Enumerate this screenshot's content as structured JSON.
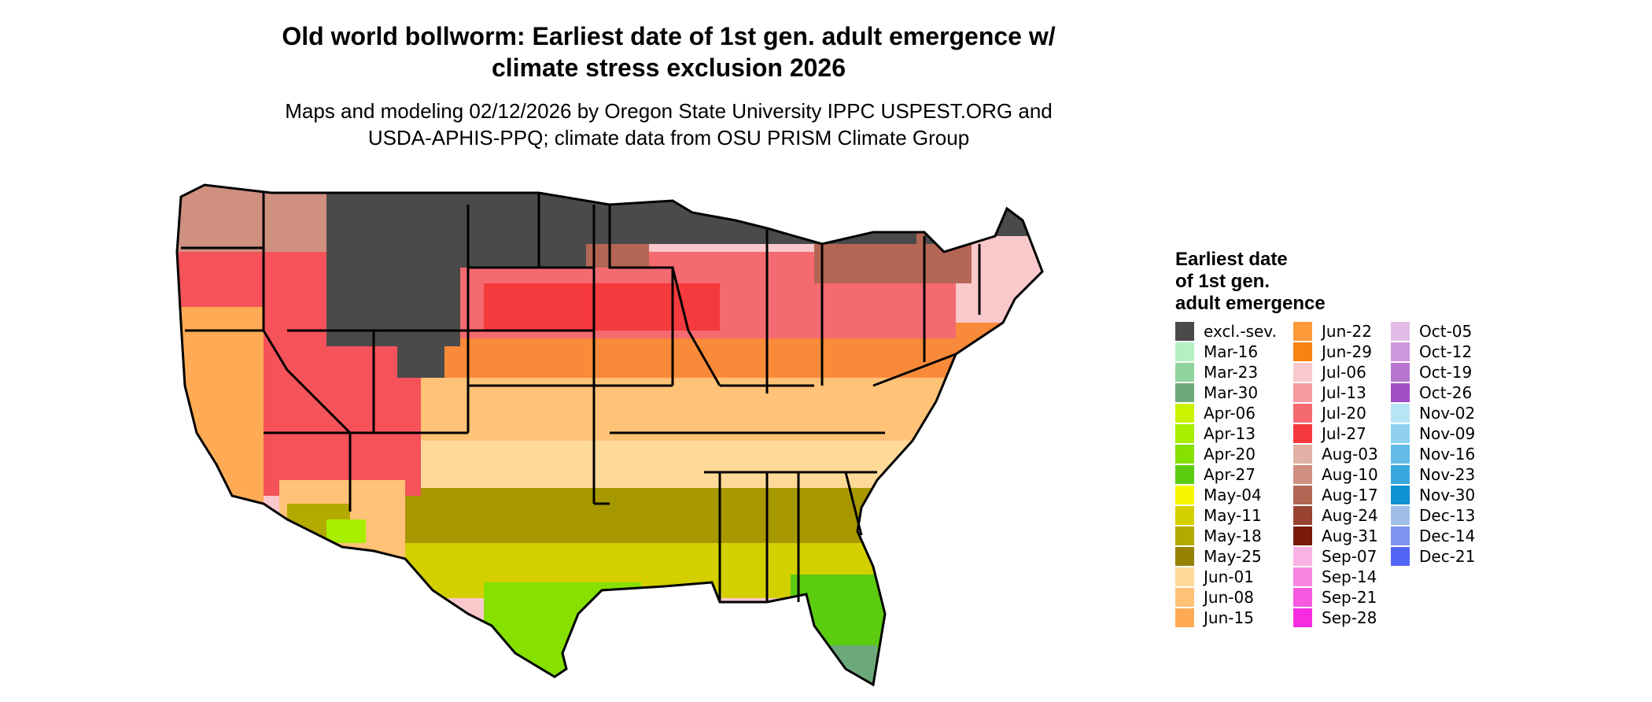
{
  "title_line1": "Old world bollworm: Earliest date of 1st gen. adult emergence w/",
  "title_line2": "climate stress exclusion 2026",
  "subtitle_line1": "Maps and modeling 02/12/2026 by Oregon State University IPPC USPEST.ORG and",
  "subtitle_line2": "USDA-APHIS-PPQ; climate data from OSU PRISM Climate Group",
  "legend": {
    "title_line1": "Earliest date",
    "title_line2": "of 1st gen.",
    "title_line3": "adult emergence",
    "columns": [
      [
        {
          "label": "excl.-sev.",
          "color": "#4a4a4a"
        },
        {
          "label": "Mar-16",
          "color": "#b3f2c0"
        },
        {
          "label": "Mar-23",
          "color": "#8fd39d"
        },
        {
          "label": "Mar-30",
          "color": "#6ca97a"
        },
        {
          "label": "Apr-06",
          "color": "#ccf200"
        },
        {
          "label": "Apr-13",
          "color": "#a8ee00"
        },
        {
          "label": "Apr-20",
          "color": "#86e000"
        },
        {
          "label": "Apr-27",
          "color": "#5ccc10"
        },
        {
          "label": "May-04",
          "color": "#f7f700"
        },
        {
          "label": "May-11",
          "color": "#d4d000"
        },
        {
          "label": "May-18",
          "color": "#b3aa00"
        },
        {
          "label": "May-25",
          "color": "#958200"
        },
        {
          "label": "Jun-01",
          "color": "#ffd998"
        },
        {
          "label": "Jun-08",
          "color": "#ffc277"
        },
        {
          "label": "Jun-15",
          "color": "#ffab55"
        }
      ],
      [
        {
          "label": "Jun-22",
          "color": "#ff9a3a"
        },
        {
          "label": "Jun-29",
          "color": "#f98310"
        },
        {
          "label": "Jul-06",
          "color": "#f7c9cc"
        },
        {
          "label": "Jul-13",
          "color": "#f59a9f"
        },
        {
          "label": "Jul-20",
          "color": "#f56a70"
        },
        {
          "label": "Jul-27",
          "color": "#f53a3e"
        },
        {
          "label": "Aug-03",
          "color": "#e2b1a5"
        },
        {
          "label": "Aug-10",
          "color": "#cf9080"
        },
        {
          "label": "Aug-17",
          "color": "#b36653"
        },
        {
          "label": "Aug-24",
          "color": "#994332"
        },
        {
          "label": "Aug-31",
          "color": "#7a1a0c"
        },
        {
          "label": "Sep-07",
          "color": "#fab3e4"
        },
        {
          "label": "Sep-14",
          "color": "#f885e2"
        },
        {
          "label": "Sep-21",
          "color": "#f55ae0"
        },
        {
          "label": "Sep-28",
          "color": "#f52ce0"
        }
      ],
      [
        {
          "label": "Oct-05",
          "color": "#e3bde8"
        },
        {
          "label": "Oct-12",
          "color": "#cd98db"
        },
        {
          "label": "Oct-19",
          "color": "#b775cf"
        },
        {
          "label": "Oct-26",
          "color": "#a04fc4"
        },
        {
          "label": "Nov-02",
          "color": "#b8e5f5"
        },
        {
          "label": "Nov-09",
          "color": "#8fd1ef"
        },
        {
          "label": "Nov-16",
          "color": "#63bde8"
        },
        {
          "label": "Nov-23",
          "color": "#3aa8e0"
        },
        {
          "label": "Nov-30",
          "color": "#0f92d4"
        },
        {
          "label": "Dec-13",
          "color": "#9fbfe8"
        },
        {
          "label": "Dec-14",
          "color": "#7d95ee"
        },
        {
          "label": "Dec-21",
          "color": "#5266f5"
        }
      ]
    ]
  }
}
